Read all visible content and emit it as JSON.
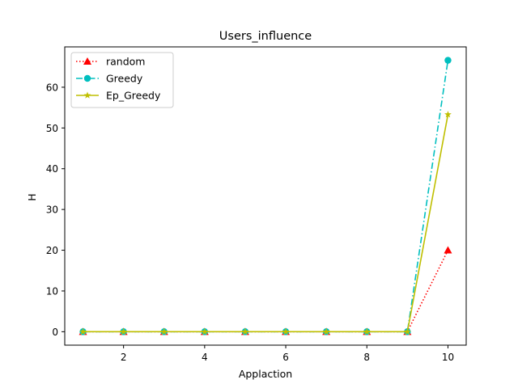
{
  "chart_data": {
    "type": "line",
    "title": "Users_influence",
    "xlabel": "Applaction",
    "ylabel": "H",
    "x": [
      1,
      2,
      3,
      4,
      5,
      6,
      7,
      8,
      9,
      10
    ],
    "xlim": [
      0.55,
      10.45
    ],
    "ylim": [
      -3.3,
      69.9
    ],
    "xticks": [
      2,
      4,
      6,
      8,
      10
    ],
    "yticks": [
      0,
      10,
      20,
      30,
      40,
      50,
      60
    ],
    "grid": false,
    "legend_position": "top-left",
    "series": [
      {
        "name": "random",
        "values": [
          0,
          0,
          0,
          0,
          0,
          0,
          0,
          0,
          0,
          20
        ],
        "color": "#ff0000",
        "line_style": "dotted",
        "marker": "triangle-up"
      },
      {
        "name": "Greedy",
        "values": [
          0,
          0,
          0,
          0,
          0,
          0,
          0,
          0,
          0,
          66.6
        ],
        "color": "#00bfbf",
        "line_style": "dashdot",
        "marker": "circle"
      },
      {
        "name": "Ep_Greedy",
        "values": [
          0,
          0,
          0,
          0,
          0,
          0,
          0,
          0,
          0,
          53.3
        ],
        "color": "#bfbf00",
        "line_style": "solid",
        "marker": "star"
      }
    ]
  }
}
